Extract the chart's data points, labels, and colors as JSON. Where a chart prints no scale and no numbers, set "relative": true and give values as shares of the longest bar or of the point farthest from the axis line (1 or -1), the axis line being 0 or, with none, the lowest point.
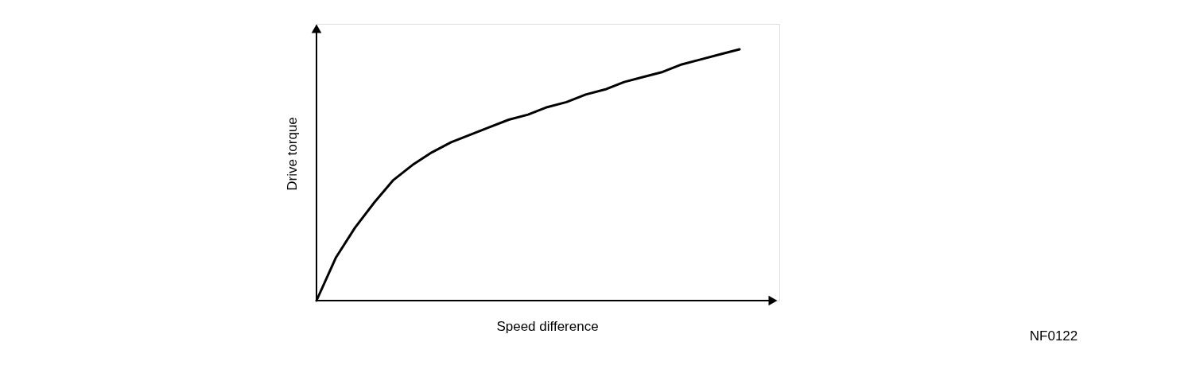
{
  "chart_data": {
    "type": "line",
    "relative": true,
    "xlabel": "Speed difference",
    "ylabel": "Drive torque",
    "categories": [
      null,
      null,
      null,
      null,
      null,
      null,
      null,
      null,
      null,
      null,
      null,
      null,
      null,
      null,
      null,
      null,
      null,
      null,
      null,
      null,
      null,
      null,
      null
    ],
    "series": [
      {
        "color": "#000000",
        "values": [
          0,
          0.17,
          0.29,
          0.39,
          0.48,
          0.54,
          0.59,
          0.63,
          0.66,
          0.69,
          0.72,
          0.74,
          0.77,
          0.79,
          0.82,
          0.84,
          0.87,
          0.89,
          0.91,
          0.94,
          0.96,
          0.98,
          1
        ]
      }
    ],
    "annotations": [
      "NF0122"
    ],
    "grid": false,
    "marker": "none",
    "line_style": "solid",
    "tick_labels": false
  }
}
